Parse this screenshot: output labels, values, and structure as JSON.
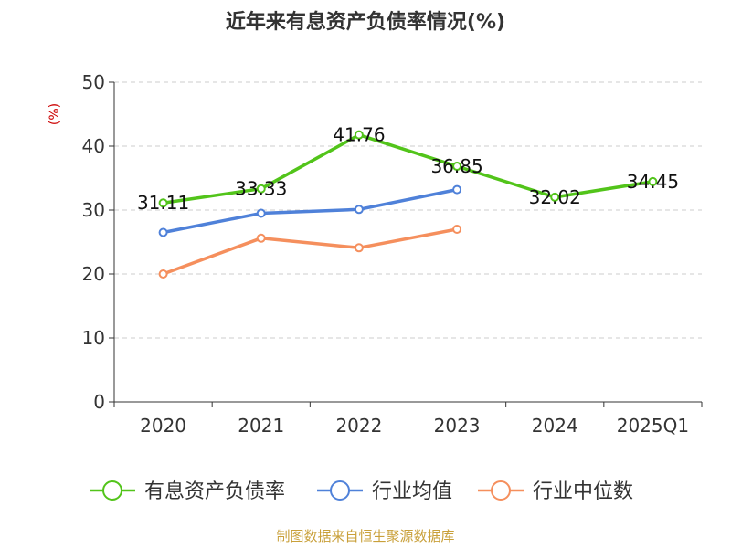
{
  "title": "近年来有息资产负债率情况(%)",
  "source": "制图数据来自恒生聚源数据库",
  "chart_data": {
    "type": "line",
    "title": "近年来有息资产负债率情况(%)",
    "ylabel": "(%)",
    "xlabel": "",
    "categories": [
      "2020",
      "2021",
      "2022",
      "2023",
      "2024",
      "2025Q1"
    ],
    "ylim": [
      0,
      50
    ],
    "yticks": [
      0,
      10,
      20,
      30,
      40,
      50
    ],
    "grid": true,
    "legend_position": "bottom",
    "series": [
      {
        "name": "有息资产负债率",
        "color": "#52c41a",
        "values": [
          31.11,
          33.33,
          41.76,
          36.85,
          32.02,
          34.45
        ],
        "labels": [
          "31.11",
          "33.33",
          "41.76",
          "36.85",
          "32.02",
          "34.45"
        ]
      },
      {
        "name": "行业均值",
        "color": "#4f81d9",
        "values": [
          26.5,
          29.5,
          30.1,
          33.2,
          null,
          null
        ]
      },
      {
        "name": "行业中位数",
        "color": "#f58f5d",
        "values": [
          20.0,
          25.6,
          24.1,
          27.0,
          null,
          null
        ]
      }
    ]
  }
}
